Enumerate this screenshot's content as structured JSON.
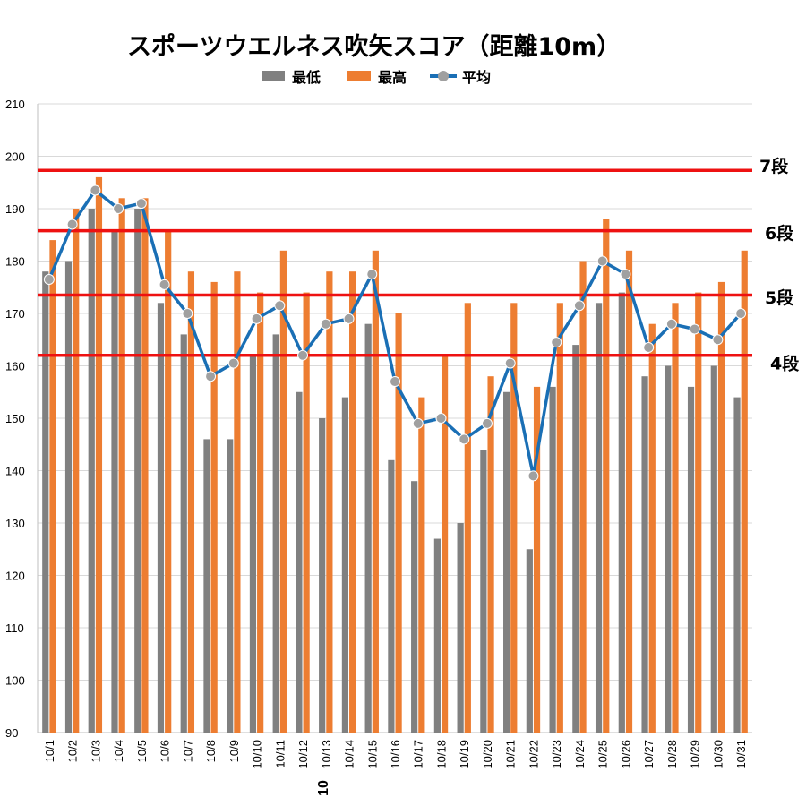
{
  "chart_data": {
    "type": "bar",
    "title": "スポーツウエルネス吹矢スコア（距離10m）",
    "categories": [
      "10/1",
      "10/2",
      "10/3",
      "10/4",
      "10/5",
      "10/6",
      "10/7",
      "10/8",
      "10/9",
      "10/10",
      "10/11",
      "10/12",
      "10/13",
      "10/14",
      "10/15",
      "10/16",
      "10/17",
      "10/18",
      "10/19",
      "10/20",
      "10/21",
      "10/22",
      "10/23",
      "10/24",
      "10/25",
      "10/26",
      "10/27",
      "10/28",
      "10/29",
      "10/30",
      "10/31"
    ],
    "series": [
      {
        "name": "最低",
        "type": "bar",
        "color": "#808080",
        "values": [
          178,
          180,
          190,
          186,
          190,
          172,
          166,
          146,
          146,
          162,
          166,
          155,
          150,
          154,
          168,
          142,
          138,
          127,
          130,
          144,
          155,
          125,
          156,
          164,
          172,
          174,
          158,
          160,
          156,
          160,
          154
        ]
      },
      {
        "name": "最高",
        "type": "bar",
        "color": "#ed7d31",
        "values": [
          184,
          190,
          196,
          192,
          192,
          186,
          178,
          176,
          178,
          174,
          182,
          174,
          178,
          178,
          182,
          170,
          154,
          162,
          172,
          158,
          172,
          156,
          172,
          180,
          188,
          182,
          168,
          172,
          174,
          176,
          182
        ]
      },
      {
        "name": "平均",
        "type": "line",
        "color": "#1a6fb5",
        "marker_color": "#a0a0a0",
        "values": [
          176.5,
          187,
          193.5,
          190,
          191,
          175.5,
          170,
          158,
          160.5,
          169,
          171.5,
          162,
          168,
          169,
          177.5,
          157,
          149,
          150,
          146,
          149,
          160.5,
          139,
          164.5,
          171.5,
          180,
          177.5,
          163.5,
          168,
          167,
          165,
          170
        ]
      }
    ],
    "reference_lines": [
      {
        "label": "7段",
        "value": 197.3,
        "color": "#ee1111"
      },
      {
        "label": "6段",
        "value": 185.8,
        "color": "#ee1111"
      },
      {
        "label": "5段",
        "value": 173.5,
        "color": "#ee1111"
      },
      {
        "label": "4段",
        "value": 162,
        "color": "#ee1111"
      }
    ],
    "ylim": [
      90,
      210
    ],
    "yticks": [
      90,
      100,
      110,
      120,
      130,
      140,
      150,
      160,
      170,
      180,
      190,
      200,
      210
    ],
    "grid": true,
    "legend_position": "top",
    "stray_label": "10",
    "xlabel": "",
    "ylabel": ""
  }
}
